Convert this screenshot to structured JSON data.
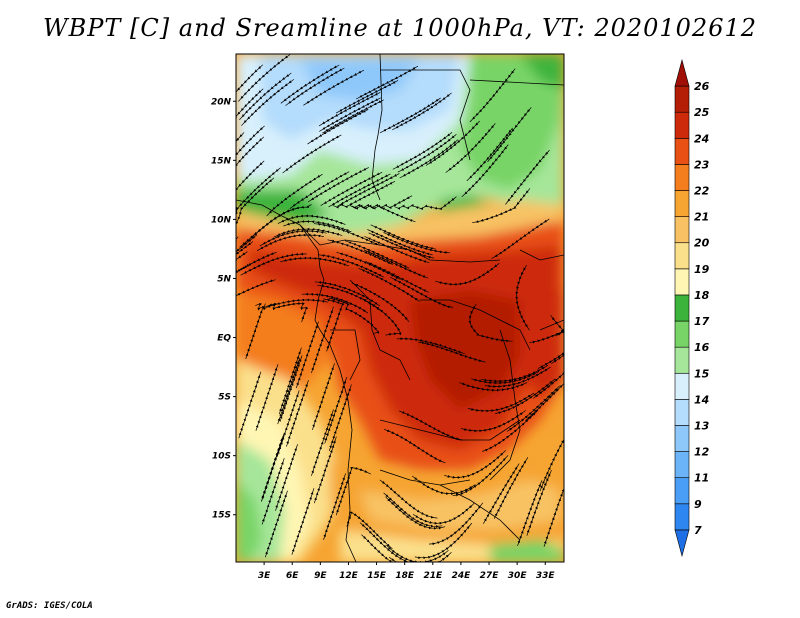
{
  "title": "WBPT [C] and Sreamline at 1000hPa, VT: 2020102612",
  "credit": "GrADS: IGES/COLA",
  "map": {
    "lat_labels": [
      "20N",
      "15N",
      "10N",
      "5N",
      "EQ",
      "5S",
      "10S",
      "15S"
    ],
    "lat_values": [
      20,
      15,
      10,
      5,
      0,
      -5,
      -10,
      -15
    ],
    "lon_labels": [
      "3E",
      "6E",
      "9E",
      "12E",
      "15E",
      "18E",
      "21E",
      "24E",
      "27E",
      "30E",
      "33E"
    ],
    "lon_values": [
      3,
      6,
      9,
      12,
      15,
      18,
      21,
      24,
      27,
      30,
      33
    ],
    "lat_range": [
      -19,
      24
    ],
    "lon_range": [
      0,
      35
    ]
  },
  "colorbar": {
    "levels": [
      "7",
      "9",
      "11",
      "12",
      "13",
      "14",
      "15",
      "16",
      "17",
      "18",
      "19",
      "20",
      "21",
      "22",
      "23",
      "24",
      "25",
      "26"
    ],
    "colors": [
      "#1e6ee6",
      "#2e86f0",
      "#4a9ef5",
      "#6cb4f8",
      "#8ec8fa",
      "#b4dcfc",
      "#d8f0fc",
      "#a6e69a",
      "#78d466",
      "#3cb43c",
      "#fff6b4",
      "#fbe08c",
      "#f8c264",
      "#f6a432",
      "#f47d1e",
      "#e85014",
      "#cd2a0c",
      "#b41e06",
      "#a01006"
    ]
  }
}
